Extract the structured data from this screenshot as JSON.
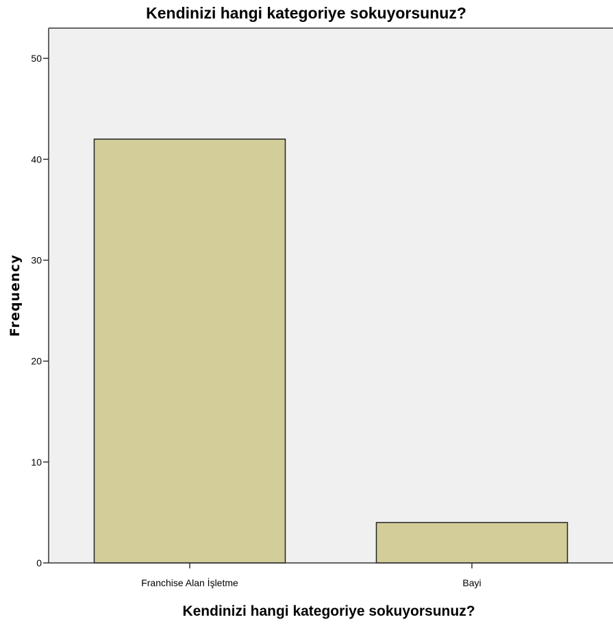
{
  "chart_data": {
    "type": "bar",
    "title": "Kendinizi hangi kategoriye sokuyorsunuz?",
    "xlabel": "Kendinizi hangi kategoriye sokuyorsunuz?",
    "ylabel": "Frequency",
    "categories": [
      "Franchise Alan İşletme",
      "Bayi"
    ],
    "values": [
      42,
      4
    ],
    "ylim": [
      0,
      53
    ],
    "yticks": [
      0,
      10,
      20,
      30,
      40,
      50
    ],
    "grid": false,
    "legend": "none",
    "colors": {
      "bar_fill": "#d3cd9a",
      "bar_stroke": "#222222",
      "plot_background": "#f0f0f0",
      "axis": "#333333"
    }
  }
}
